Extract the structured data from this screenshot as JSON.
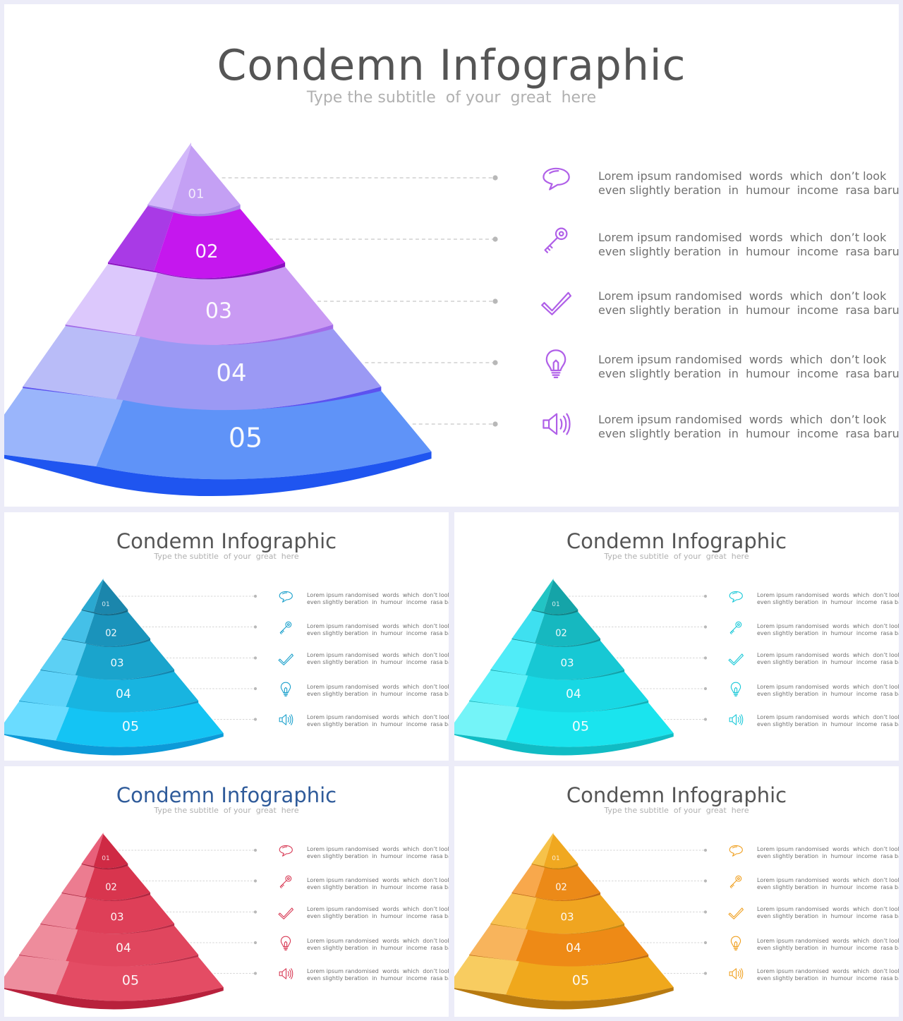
{
  "slides": [
    {
      "title": "Condemn Infographic",
      "subtitle": "Type the subtitle  of your  great  here",
      "title_color": "#555555",
      "palette": {
        "side": [
          "#d2b8fa",
          "#a93ae6",
          "#dcc8fc",
          "#b9bcf8",
          "#9ab5fb"
        ],
        "front": [
          "#c4a0f4",
          "#c517ee",
          "#c99af3",
          "#9b99f4",
          "#5f93f8"
        ],
        "rim": [
          "#a984e8",
          "#8a10c0",
          "#a26be8",
          "#5c52f0",
          "#1f55f0"
        ],
        "icon": "#b060e8"
      },
      "layers": [
        {
          "label": "01",
          "icon": "speech-bubble-icon",
          "text_line1": "Lorem ipsum randomised  words  which  don’t look",
          "text_line2": "even slightly beration  in  humour  income  rasa baru"
        },
        {
          "label": "02",
          "icon": "key-icon",
          "text_line1": "Lorem ipsum randomised  words  which  don’t look",
          "text_line2": "even slightly beration  in  humour  income  rasa baru"
        },
        {
          "label": "03",
          "icon": "checkmark-icon",
          "text_line1": "Lorem ipsum randomised  words  which  don’t look",
          "text_line2": "even slightly beration  in  humour  income  rasa baru"
        },
        {
          "label": "04",
          "icon": "lightbulb-icon",
          "text_line1": "Lorem ipsum randomised  words  which  don’t look",
          "text_line2": "even slightly beration  in  humour  income  rasa baru"
        },
        {
          "label": "05",
          "icon": "speaker-icon",
          "text_line1": "Lorem ipsum randomised  words  which  don’t look",
          "text_line2": "even slightly beration  in  humour  income  rasa baru"
        }
      ]
    },
    {
      "title": "Condemn Infographic",
      "subtitle": "Type the subtitle  of your  great  here",
      "title_color": "#555555",
      "palette": {
        "side": [
          "#2aa8d0",
          "#44c0e8",
          "#5cd0f4",
          "#60d4fa",
          "#6adcff"
        ],
        "front": [
          "#1b86ac",
          "#1a93bb",
          "#1aa4cc",
          "#18b4e0",
          "#14c4f4"
        ],
        "rim": [
          "#136a88",
          "#13789c",
          "#1286b0",
          "#1096c8",
          "#0c9ad8"
        ],
        "icon": "#1aa0cc"
      },
      "layers": [
        {
          "label": "01",
          "icon": "speech-bubble-icon",
          "text_line1": "Lorem ipsum randomised  words  which  don’t look",
          "text_line2": "even slightly beration  in  humour  income  rasa baru"
        },
        {
          "label": "02",
          "icon": "key-icon",
          "text_line1": "Lorem ipsum randomised  words  which  don’t look",
          "text_line2": "even slightly beration  in  humour  income  rasa baru"
        },
        {
          "label": "03",
          "icon": "checkmark-icon",
          "text_line1": "Lorem ipsum randomised  words  which  don’t look",
          "text_line2": "even slightly beration  in  humour  income  rasa baru"
        },
        {
          "label": "04",
          "icon": "lightbulb-icon",
          "text_line1": "Lorem ipsum randomised  words  which  don’t look",
          "text_line2": "even slightly beration  in  humour  income  rasa baru"
        },
        {
          "label": "05",
          "icon": "speaker-icon",
          "text_line1": "Lorem ipsum randomised  words  which  don’t look",
          "text_line2": "even slightly beration  in  humour  income  rasa baru"
        }
      ]
    },
    {
      "title": "Condemn Infographic",
      "subtitle": "Type the subtitle  of your  great  here",
      "title_color": "#555555",
      "palette": {
        "side": [
          "#22c4c4",
          "#3ee0f0",
          "#50ecf8",
          "#5cf0f8",
          "#74f4f8"
        ],
        "front": [
          "#15a4a8",
          "#16b8c0",
          "#17c8d4",
          "#18d8e4",
          "#1ae4ee"
        ],
        "rim": [
          "#0f8488",
          "#10949c",
          "#10a4ac",
          "#10b0b8",
          "#10bcc4"
        ],
        "icon": "#18c8d8"
      },
      "layers": [
        {
          "label": "01",
          "icon": "speech-bubble-icon",
          "text_line1": "Lorem ipsum randomised  words  which  don’t look",
          "text_line2": "even slightly beration  in  humour  income  rasa baru"
        },
        {
          "label": "02",
          "icon": "key-icon",
          "text_line1": "Lorem ipsum randomised  words  which  don’t look",
          "text_line2": "even slightly beration  in  humour  income  rasa baru"
        },
        {
          "label": "03",
          "icon": "checkmark-icon",
          "text_line1": "Lorem ipsum randomised  words  which  don’t look",
          "text_line2": "even slightly beration  in  humour  income  rasa baru"
        },
        {
          "label": "04",
          "icon": "lightbulb-icon",
          "text_line1": "Lorem ipsum randomised  words  which  don’t look",
          "text_line2": "even slightly beration  in  humour  income  rasa baru"
        },
        {
          "label": "05",
          "icon": "speaker-icon",
          "text_line1": "Lorem ipsum randomised  words  which  don’t look",
          "text_line2": "even slightly beration  in  humour  income  rasa baru"
        }
      ]
    },
    {
      "title": "Condemn Infographic",
      "subtitle": "Type the subtitle  of your  great  here",
      "title_color": "#2f5b9a",
      "palette": {
        "side": [
          "#e8607a",
          "#ec7c90",
          "#ee8a9c",
          "#ee8c9c",
          "#ee8e9e"
        ],
        "front": [
          "#cf2a44",
          "#d8354e",
          "#de3f58",
          "#e0465e",
          "#e44c64"
        ],
        "rim": [
          "#a8203a",
          "#b02640",
          "#b82c46",
          "#bc304a",
          "#b8213c"
        ],
        "icon": "#d83a55"
      },
      "layers": [
        {
          "label": "01",
          "icon": "speech-bubble-icon",
          "text_line1": "Lorem ipsum randomised  words  which  don’t look",
          "text_line2": "even slightly beration  in  humour  income  rasa baru"
        },
        {
          "label": "02",
          "icon": "key-icon",
          "text_line1": "Lorem ipsum randomised  words  which  don’t look",
          "text_line2": "even slightly beration  in  humour  income  rasa baru"
        },
        {
          "label": "03",
          "icon": "checkmark-icon",
          "text_line1": "Lorem ipsum randomised  words  which  don’t look",
          "text_line2": "even slightly beration  in  humour  income  rasa baru"
        },
        {
          "label": "04",
          "icon": "lightbulb-icon",
          "text_line1": "Lorem ipsum randomised  words  which  don’t look",
          "text_line2": "even slightly beration  in  humour  income  rasa baru"
        },
        {
          "label": "05",
          "icon": "speaker-icon",
          "text_line1": "Lorem ipsum randomised  words  which  don’t look",
          "text_line2": "even slightly beration  in  humour  income  rasa baru"
        }
      ]
    },
    {
      "title": "Condemn Infographic",
      "subtitle": "Type the subtitle  of your  great  here",
      "title_color": "#555555",
      "palette": {
        "side": [
          "#f6c24a",
          "#f8a84c",
          "#f8c050",
          "#f8b45c",
          "#f8cc60"
        ],
        "front": [
          "#f0a820",
          "#ec8a18",
          "#f0a520",
          "#ee8a16",
          "#f0a81c"
        ],
        "rim": [
          "#c88410",
          "#c46a10",
          "#c88a12",
          "#c46e10",
          "#b87a10"
        ],
        "icon": "#f0a020"
      },
      "layers": [
        {
          "label": "01",
          "icon": "speech-bubble-icon",
          "text_line1": "Lorem ipsum randomised  words  which  don’t look",
          "text_line2": "even slightly beration  in  humour  income  rasa baru"
        },
        {
          "label": "02",
          "icon": "key-icon",
          "text_line1": "Lorem ipsum randomised  words  which  don’t look",
          "text_line2": "even slightly beration  in  humour  income  rasa baru"
        },
        {
          "label": "03",
          "icon": "checkmark-icon",
          "text_line1": "Lorem ipsum randomised  words  which  don’t look",
          "text_line2": "even slightly beration  in  humour  income  rasa baru"
        },
        {
          "label": "04",
          "icon": "lightbulb-icon",
          "text_line1": "Lorem ipsum randomised  words  which  don’t look",
          "text_line2": "even slightly beration  in  humour  income  rasa baru"
        },
        {
          "label": "05",
          "icon": "speaker-icon",
          "text_line1": "Lorem ipsum randomised  words  which  don’t look",
          "text_line2": "even slightly beration  in  humour  income  rasa baru"
        }
      ]
    }
  ]
}
